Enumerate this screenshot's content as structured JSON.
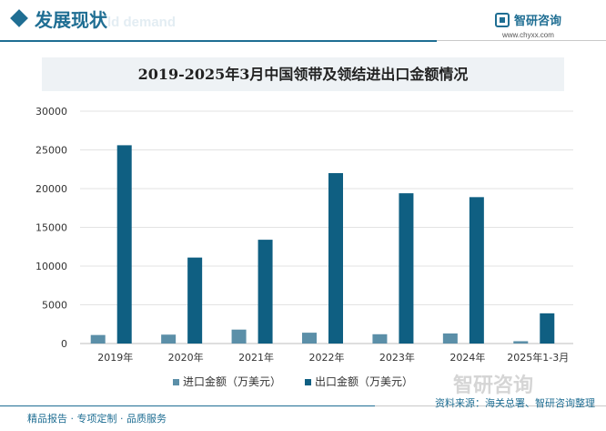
{
  "header": {
    "section_title": "发展现状",
    "section_subtitle": "ld demand",
    "brand_name": "智研咨询",
    "brand_url": "www.chyxx.com"
  },
  "footer": {
    "services": "精品报告 · 专项定制 · 品质服务",
    "source": "资料来源：海关总署、智研咨询整理",
    "watermark": "智研咨询"
  },
  "colors": {
    "import": "#5b8fa8",
    "export": "#0f5f82",
    "accent": "#1f6e93"
  },
  "chart_data": {
    "type": "bar",
    "title": "2019-2025年3月中国领带及领结进出口金额情况",
    "categories": [
      "2019年",
      "2020年",
      "2021年",
      "2022年",
      "2023年",
      "2024年",
      "2025年1-3月"
    ],
    "series": [
      {
        "name": "进口金额（万美元）",
        "values": [
          1100,
          1150,
          1800,
          1400,
          1200,
          1300,
          300
        ]
      },
      {
        "name": "出口金额（万美元）",
        "values": [
          25600,
          11100,
          13400,
          22000,
          19400,
          18900,
          3900
        ]
      }
    ],
    "y_ticks": [
      "0",
      "5000",
      "10000",
      "15000",
      "20000",
      "25000",
      "30000"
    ],
    "ylim": [
      0,
      30000
    ],
    "grid": true,
    "legend_position": "bottom"
  }
}
